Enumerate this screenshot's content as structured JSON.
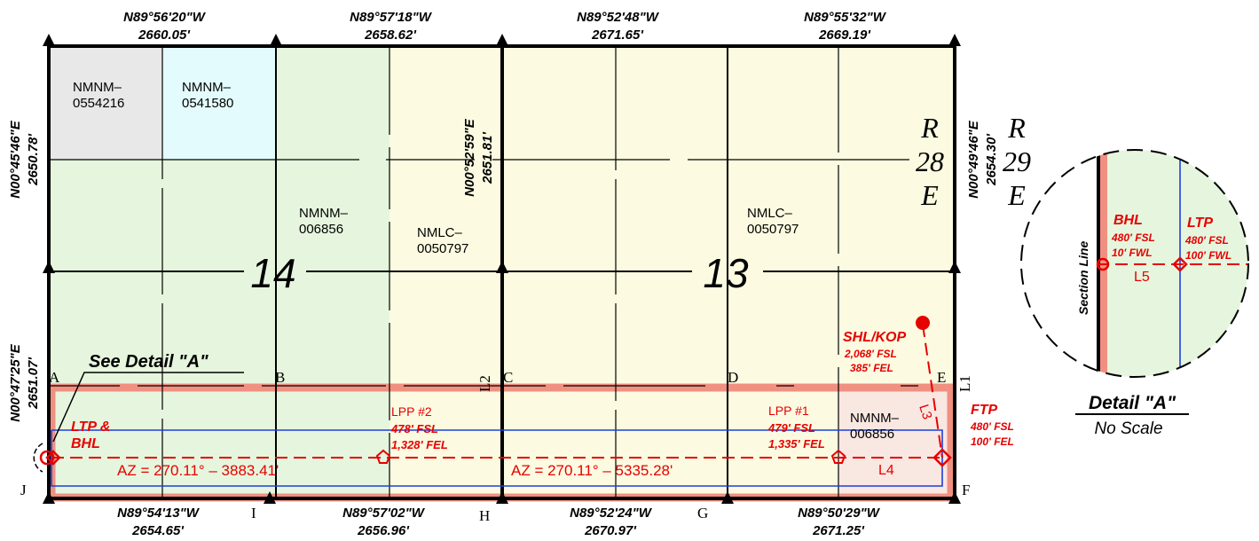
{
  "section_numbers": {
    "west": "14",
    "east": "13"
  },
  "range": {
    "r28": [
      "R",
      "28",
      "E"
    ],
    "r29": [
      "R",
      "29",
      "E"
    ]
  },
  "top_bearings": [
    {
      "bearing": "N89°56'20\"W",
      "distance": "2660.05'"
    },
    {
      "bearing": "N89°57'18\"W",
      "distance": "2658.62'"
    },
    {
      "bearing": "N89°52'48\"W",
      "distance": "2671.65'"
    },
    {
      "bearing": "N89°55'32\"W",
      "distance": "2669.19'"
    }
  ],
  "bottom_bearings": [
    {
      "bearing": "N89°54'13\"W",
      "distance": "2654.65'"
    },
    {
      "bearing": "N89°57'02\"W",
      "distance": "2656.96'"
    },
    {
      "bearing": "N89°52'24\"W",
      "distance": "2670.97'"
    },
    {
      "bearing": "N89°50'29\"W",
      "distance": "2671.25'"
    }
  ],
  "side_bearings": {
    "west_upper": {
      "bearing": "N00°45'46\"E",
      "distance": "2650.78'"
    },
    "west_lower": {
      "bearing": "N00°47'25\"E",
      "distance": "2651.07'"
    },
    "middle": {
      "bearing": "N00°52'59\"E",
      "distance": "2651.81'"
    },
    "east": {
      "bearing": "N00°49'46\"E",
      "distance": "2654.30'"
    }
  },
  "leases": {
    "nw_gray": [
      "NMNM–",
      "0554216"
    ],
    "nw_cyan": [
      "NMNM–",
      "0541580"
    ],
    "sec14_green": [
      "NMNM–",
      "006856"
    ],
    "sec14_yellow": [
      "NMLC–",
      "0050797"
    ],
    "sec13_yellow": [
      "NMLC–",
      "0050797"
    ],
    "sec13_pink": [
      "NMNM–",
      "006856"
    ]
  },
  "corners": [
    "A",
    "B",
    "C",
    "D",
    "E",
    "F",
    "G",
    "H",
    "I",
    "J"
  ],
  "line_labels": {
    "l1": "L1",
    "l2": "L2",
    "l3": "L3",
    "l4": "L4",
    "l5": "L5"
  },
  "see_detail": "See Detail \"A\"",
  "azimuths": [
    "AZ = 270.11° – 3883.41'",
    "AZ = 270.11° – 5335.28'"
  ],
  "shl": [
    "SHL/KOP",
    "2,068' FSL",
    "385' FEL"
  ],
  "ftp": [
    "FTP",
    "480' FSL",
    "100' FEL"
  ],
  "lpp1": [
    "LPP #1",
    "479' FSL",
    "1,335' FEL"
  ],
  "lpp2": [
    "LPP #2",
    "478' FSL",
    "1,328' FEL"
  ],
  "ltp_bhl": [
    "LTP &",
    "BHL"
  ],
  "detail": {
    "title": "Detail \"A\"",
    "subtitle": "No Scale",
    "section_line": "Section Line",
    "bhl": [
      "BHL",
      "480' FSL",
      "10' FWL"
    ],
    "ltp": [
      "LTP",
      "480' FSL",
      "100' FWL"
    ]
  },
  "colors": {
    "sec14_lease": "#e6f6de",
    "sec13_lease": "#fcfbe1",
    "gray_lease": "#e8e8e8",
    "cyan_lease": "#e4fbfd",
    "pink_lease": "#f9e7e2",
    "spacing_unit": "#f09081",
    "well_path": "#e60000",
    "lateral_line": "#1f3fd8"
  }
}
